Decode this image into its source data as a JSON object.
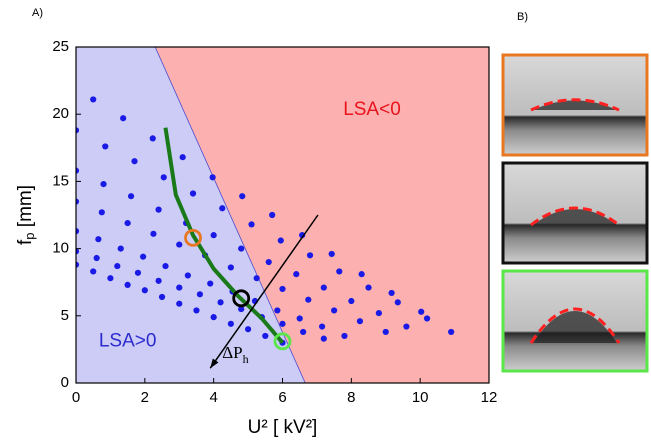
{
  "chart_data": {
    "type": "scatter",
    "panel_label": "A)",
    "xlabel": "U² [ kV²]",
    "ylabel_parts": [
      "f",
      "p",
      " [mm]"
    ],
    "xlim": [
      0,
      12
    ],
    "ylim": [
      0,
      25
    ],
    "xticks": [
      0,
      2,
      4,
      6,
      8,
      10,
      12
    ],
    "yticks": [
      0,
      5,
      10,
      15,
      20,
      25
    ],
    "regions": {
      "left_color": "#ccccf7",
      "right_color": "#fdb0b0",
      "boundary": {
        "x": [
          2.3,
          6.66
        ],
        "y": [
          25,
          0
        ]
      }
    },
    "annotations": [
      {
        "text": "LSA<0",
        "x": 8.6,
        "y": 20.3,
        "color": "#e8141c"
      },
      {
        "text": "LSA>0",
        "x": 1.5,
        "y": 3.1,
        "color": "#2b2bd0"
      }
    ],
    "arrow": {
      "x": [
        7.03,
        3.9
      ],
      "y": [
        12.5,
        1.1
      ],
      "label_parts": [
        "ΔP",
        "h"
      ]
    },
    "series": [
      {
        "color": "#1a1ae6",
        "x": [
          0,
          0.5,
          1,
          1.5,
          2,
          2.5,
          3,
          3.5,
          4,
          4.5,
          5,
          5.5,
          6
        ],
        "y": [
          8.8,
          8.3,
          7.8,
          7.3,
          6.9,
          6.4,
          5.9,
          5.4,
          4.9,
          4.4,
          4.0,
          3.5,
          3.0
        ]
      },
      {
        "color": "#1a1ae6",
        "x": [
          0,
          0.6,
          1.2,
          1.8,
          2.4,
          3.0,
          3.6,
          4.2,
          4.8,
          5.4,
          6.0,
          6.6,
          7.2
        ],
        "y": [
          9.8,
          9.3,
          8.7,
          8.2,
          7.6,
          7.1,
          6.6,
          6.0,
          5.5,
          4.9,
          4.4,
          3.8,
          3.3
        ]
      },
      {
        "color": "#1a1ae6",
        "x": [
          0,
          0.65,
          1.3,
          1.95,
          2.6,
          3.25,
          3.9,
          4.55,
          5.2,
          5.85,
          6.5,
          7.15,
          7.8
        ],
        "y": [
          11.3,
          10.7,
          10.0,
          9.4,
          8.7,
          8.0,
          7.4,
          6.8,
          6.1,
          5.4,
          4.8,
          4.2,
          3.5
        ]
      },
      {
        "color": "#1a1ae6",
        "x": [
          0,
          0.75,
          1.5,
          2.25,
          3.0,
          3.75,
          4.5,
          5.25,
          6.0,
          6.75,
          7.5,
          8.25,
          9.0
        ],
        "y": [
          13.5,
          12.7,
          11.9,
          11.1,
          10.3,
          9.5,
          8.6,
          7.8,
          7.0,
          6.2,
          5.4,
          4.6,
          3.8
        ]
      },
      {
        "color": "#1a1ae6",
        "x": [
          0,
          0.8,
          1.6,
          2.4,
          3.2,
          4.0,
          4.8,
          5.6,
          6.4,
          7.2,
          8.0,
          8.8,
          9.6
        ],
        "y": [
          15.8,
          14.8,
          13.9,
          12.9,
          11.9,
          11.0,
          10.0,
          9.0,
          8.1,
          7.1,
          6.1,
          5.2,
          4.2
        ]
      },
      {
        "color": "#1a1ae6",
        "x": [
          0,
          0.85,
          1.7,
          2.55,
          3.4,
          4.25,
          5.1,
          5.95,
          6.8,
          7.65,
          8.5,
          9.35,
          10.2
        ],
        "y": [
          18.8,
          17.6,
          16.5,
          15.3,
          14.1,
          13.0,
          11.8,
          10.6,
          9.5,
          8.3,
          7.1,
          6.0,
          4.8
        ]
      },
      {
        "color": "#1a1ae6",
        "x": [
          0.5,
          1.37,
          2.23,
          3.1,
          3.97,
          4.83,
          5.7,
          6.57,
          7.43,
          8.3,
          9.17,
          10.03,
          10.9
        ],
        "y": [
          21.1,
          19.7,
          18.2,
          16.8,
          15.3,
          13.9,
          12.5,
          11.0,
          9.6,
          8.1,
          6.7,
          5.3,
          3.8
        ]
      }
    ],
    "curve": {
      "color": "#1a7a1a",
      "x": [
        2.6,
        2.9,
        3.4,
        4.0,
        4.7,
        5.4,
        6.0
      ],
      "y": [
        19,
        14,
        11,
        8.5,
        6.5,
        4.8,
        3.0
      ]
    },
    "highlights": [
      {
        "color": "#e87722",
        "x": 3.4,
        "y": 10.8
      },
      {
        "color": "#000000",
        "x": 4.8,
        "y": 6.3
      },
      {
        "color": "#5be64a",
        "x": 6.0,
        "y": 3.1
      }
    ]
  },
  "panel_b": {
    "label": "B)",
    "frames": [
      "#e87722",
      "#111111",
      "#5be64a"
    ]
  }
}
